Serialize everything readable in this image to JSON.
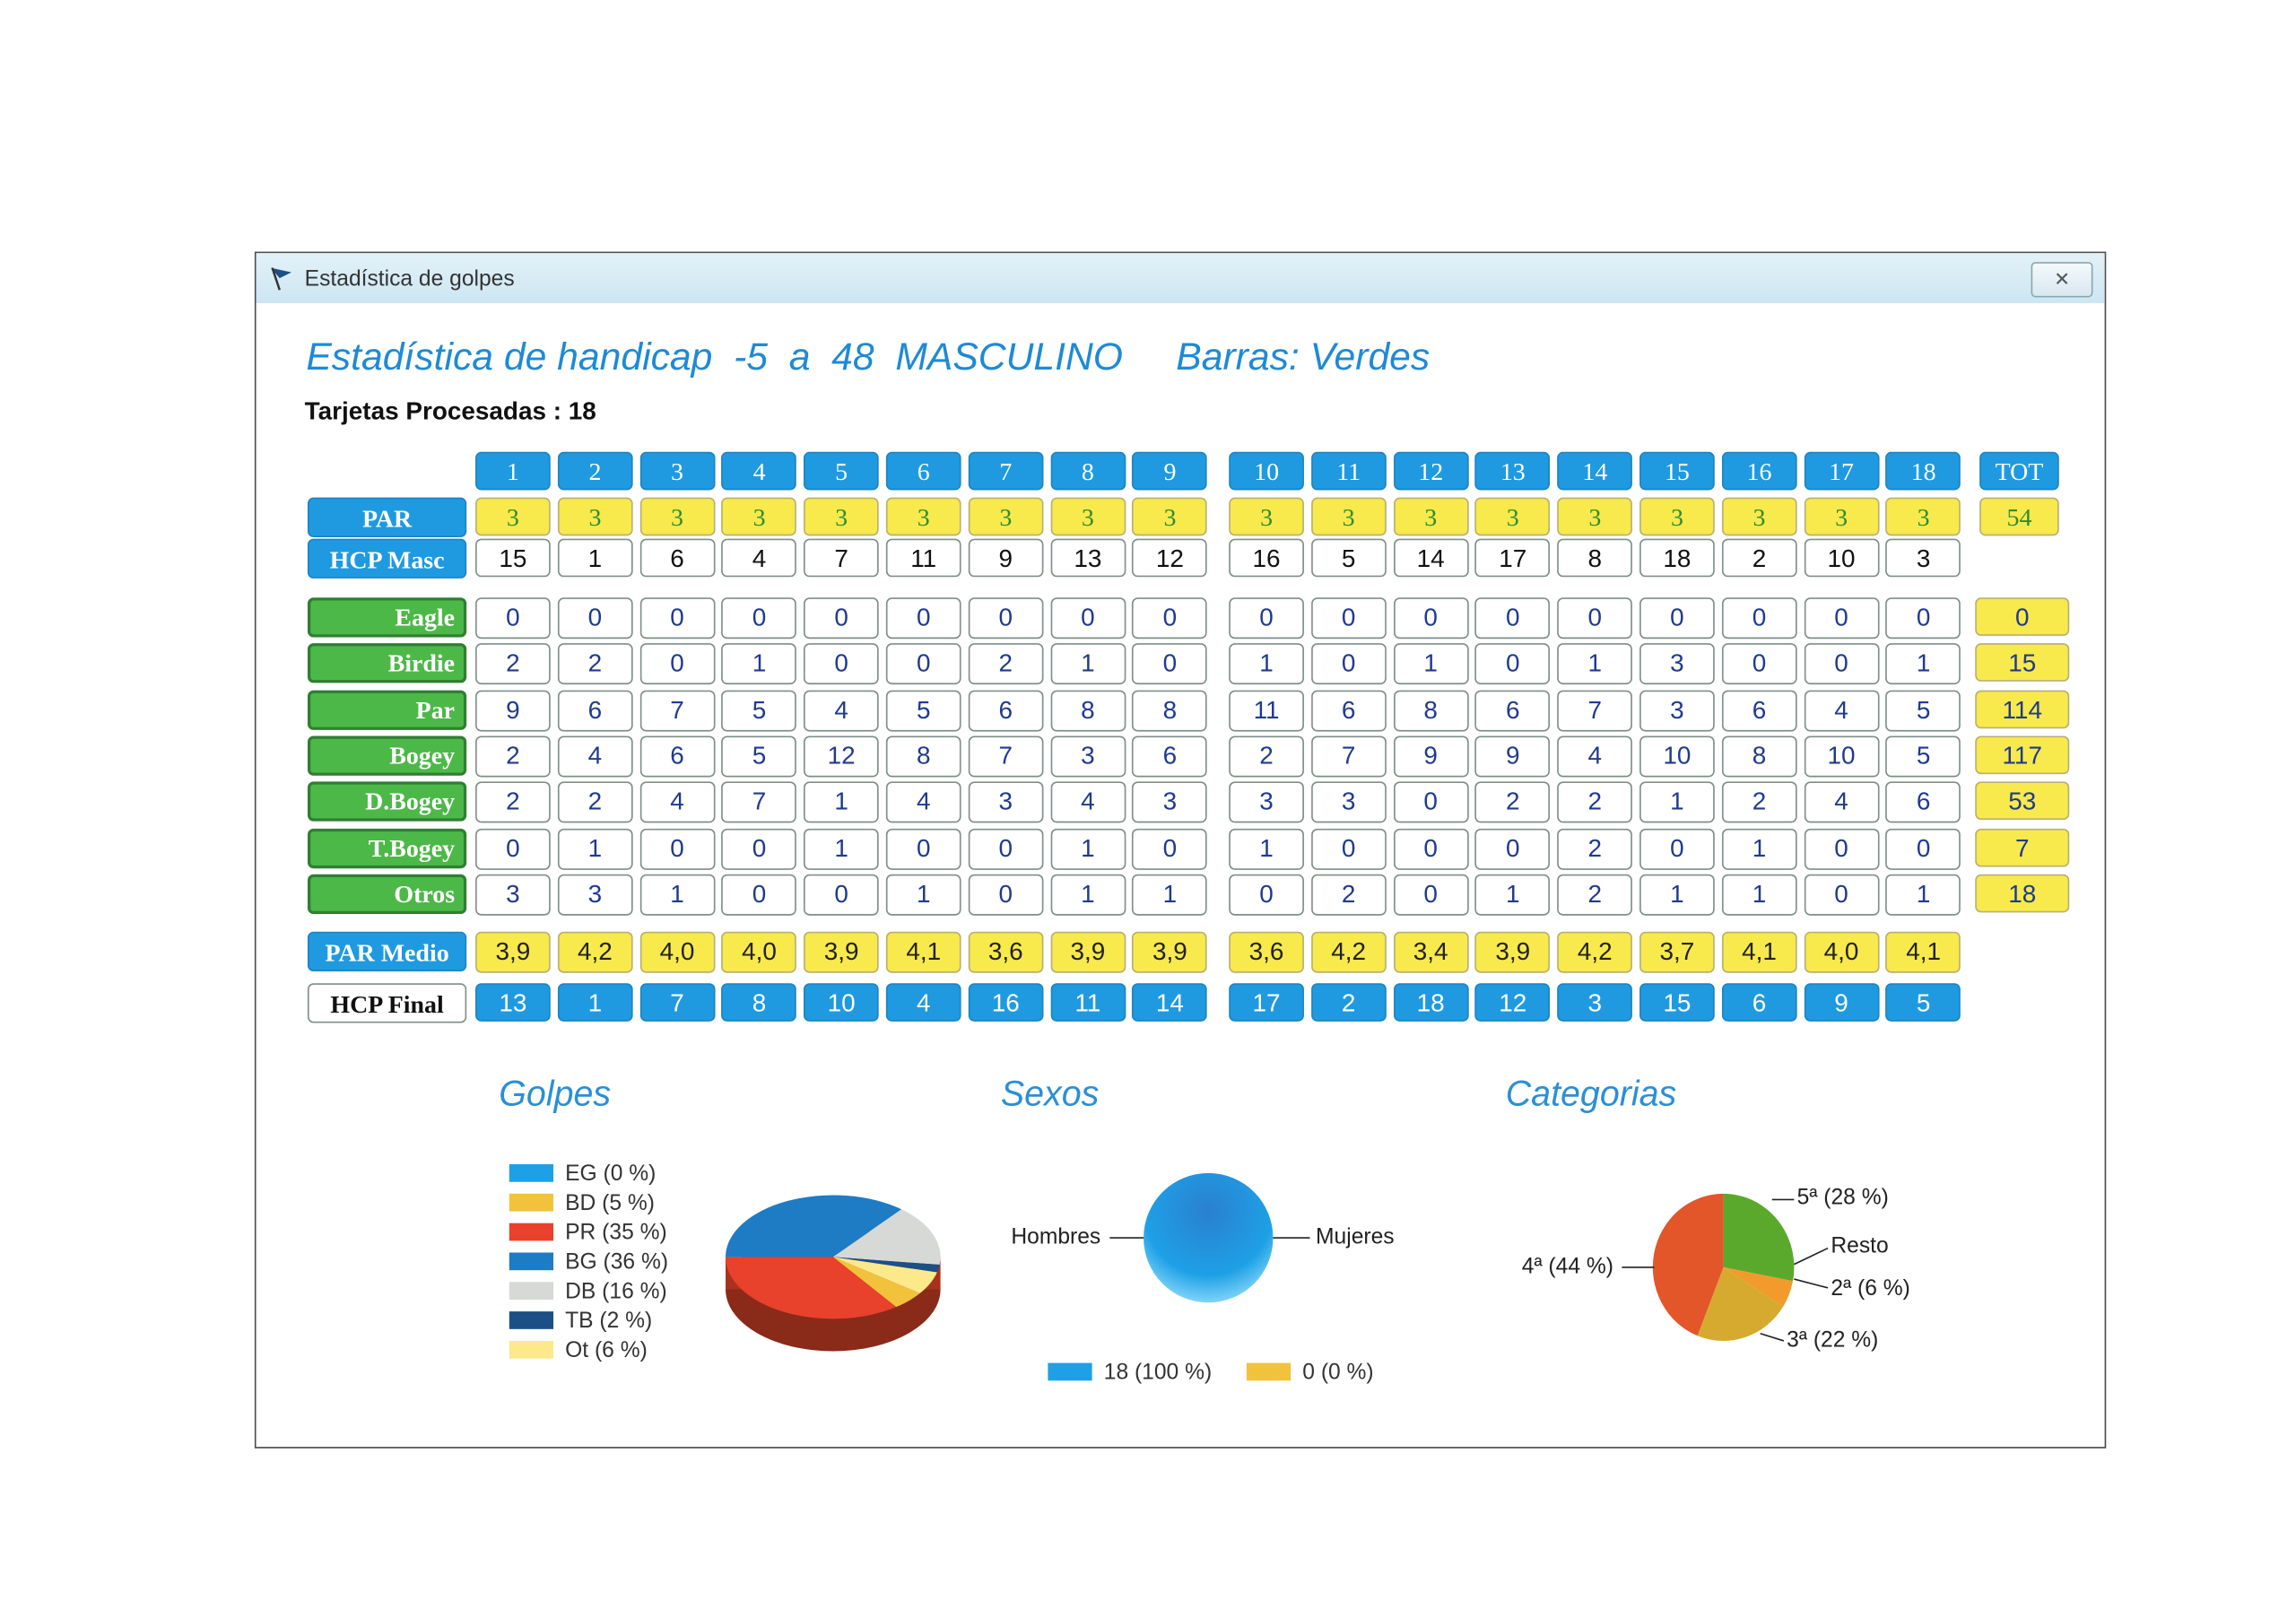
{
  "window": {
    "title": "Estadística de golpes",
    "close_label": "✕"
  },
  "header": {
    "title_main": "Estadística de handicap  -5  a  48  MASCULINO",
    "title_bars": "Barras: Verdes",
    "tarjetas": "Tarjetas Procesadas : 18"
  },
  "table": {
    "holes_front": [
      "1",
      "2",
      "3",
      "4",
      "5",
      "6",
      "7",
      "8",
      "9"
    ],
    "holes_back": [
      "10",
      "11",
      "12",
      "13",
      "14",
      "15",
      "16",
      "17",
      "18"
    ],
    "tot_label": "TOT",
    "par": {
      "label": "PAR",
      "values": [
        "3",
        "3",
        "3",
        "3",
        "3",
        "3",
        "3",
        "3",
        "3",
        "3",
        "3",
        "3",
        "3",
        "3",
        "3",
        "3",
        "3",
        "3"
      ],
      "total": "54"
    },
    "hcp_masc": {
      "label": "HCP Masc",
      "values": [
        "15",
        "1",
        "6",
        "4",
        "7",
        "11",
        "9",
        "13",
        "12",
        "16",
        "5",
        "14",
        "17",
        "8",
        "18",
        "2",
        "10",
        "3"
      ]
    },
    "stats": [
      {
        "label": "Eagle",
        "values": [
          "0",
          "0",
          "0",
          "0",
          "0",
          "0",
          "0",
          "0",
          "0",
          "0",
          "0",
          "0",
          "0",
          "0",
          "0",
          "0",
          "0",
          "0"
        ],
        "total": "0"
      },
      {
        "label": "Birdie",
        "values": [
          "2",
          "2",
          "0",
          "1",
          "0",
          "0",
          "2",
          "1",
          "0",
          "1",
          "0",
          "1",
          "0",
          "1",
          "3",
          "0",
          "0",
          "1"
        ],
        "total": "15"
      },
      {
        "label": "Par",
        "values": [
          "9",
          "6",
          "7",
          "5",
          "4",
          "5",
          "6",
          "8",
          "8",
          "11",
          "6",
          "8",
          "6",
          "7",
          "3",
          "6",
          "4",
          "5"
        ],
        "total": "114"
      },
      {
        "label": "Bogey",
        "values": [
          "2",
          "4",
          "6",
          "5",
          "12",
          "8",
          "7",
          "3",
          "6",
          "2",
          "7",
          "9",
          "9",
          "4",
          "10",
          "8",
          "10",
          "5"
        ],
        "total": "117"
      },
      {
        "label": "D.Bogey",
        "values": [
          "2",
          "2",
          "4",
          "7",
          "1",
          "4",
          "3",
          "4",
          "3",
          "3",
          "3",
          "0",
          "2",
          "2",
          "1",
          "2",
          "4",
          "6"
        ],
        "total": "53"
      },
      {
        "label": "T.Bogey",
        "values": [
          "0",
          "1",
          "0",
          "0",
          "1",
          "0",
          "0",
          "1",
          "0",
          "1",
          "0",
          "0",
          "0",
          "2",
          "0",
          "1",
          "0",
          "0"
        ],
        "total": "7"
      },
      {
        "label": "Otros",
        "values": [
          "3",
          "3",
          "1",
          "0",
          "0",
          "1",
          "0",
          "1",
          "1",
          "0",
          "2",
          "0",
          "1",
          "2",
          "1",
          "1",
          "0",
          "1"
        ],
        "total": "18"
      }
    ],
    "par_medio": {
      "label": "PAR Medio",
      "values": [
        "3,9",
        "4,2",
        "4,0",
        "4,0",
        "3,9",
        "4,1",
        "3,6",
        "3,9",
        "3,9",
        "3,6",
        "4,2",
        "3,4",
        "3,9",
        "4,2",
        "3,7",
        "4,1",
        "4,0",
        "4,1"
      ]
    },
    "hcp_final": {
      "label": "HCP Final",
      "values": [
        "13",
        "1",
        "7",
        "8",
        "10",
        "4",
        "16",
        "11",
        "14",
        "17",
        "2",
        "18",
        "12",
        "3",
        "15",
        "6",
        "9",
        "5"
      ]
    }
  },
  "chart_data": [
    {
      "type": "pie",
      "title": "Golpes",
      "categories": [
        "EG",
        "BD",
        "PR",
        "BG",
        "DB",
        "TB",
        "Ot"
      ],
      "values": [
        0,
        5,
        35,
        36,
        16,
        2,
        6
      ],
      "legend": [
        "EG (0 %)",
        "BD (5 %)",
        "PR (35 %)",
        "BG (36 %)",
        "DB (16 %)",
        "TB (2 %)",
        "Ot (6 %)"
      ],
      "colors": [
        "#1ea0e6",
        "#f2c23c",
        "#e8412c",
        "#1d7cc4",
        "#d6d9d6",
        "#1c4f86",
        "#fbe98c"
      ],
      "legend_position": "left"
    },
    {
      "type": "pie",
      "title": "Sexos",
      "categories": [
        "Hombres",
        "Mujeres"
      ],
      "values": [
        18,
        0
      ],
      "legend": [
        "18 (100 %)",
        "0 (0 %)"
      ],
      "colors": [
        "#1ea0e6",
        "#f2c23c"
      ],
      "legend_position": "bottom"
    },
    {
      "type": "pie",
      "title": "Categorias",
      "categories": [
        "5ª",
        "Resto",
        "2ª",
        "3ª",
        "4ª"
      ],
      "values": [
        28,
        0,
        6,
        22,
        44
      ],
      "labels": [
        "5ª (28 %)",
        "Resto",
        "2ª (6 %)",
        "3ª (22 %)",
        "4ª (44 %)"
      ],
      "colors": [
        "#5aa92c",
        "#e8e04a",
        "#f29a2c",
        "#d5aa2e",
        "#e2562a"
      ],
      "legend_position": "none"
    }
  ]
}
